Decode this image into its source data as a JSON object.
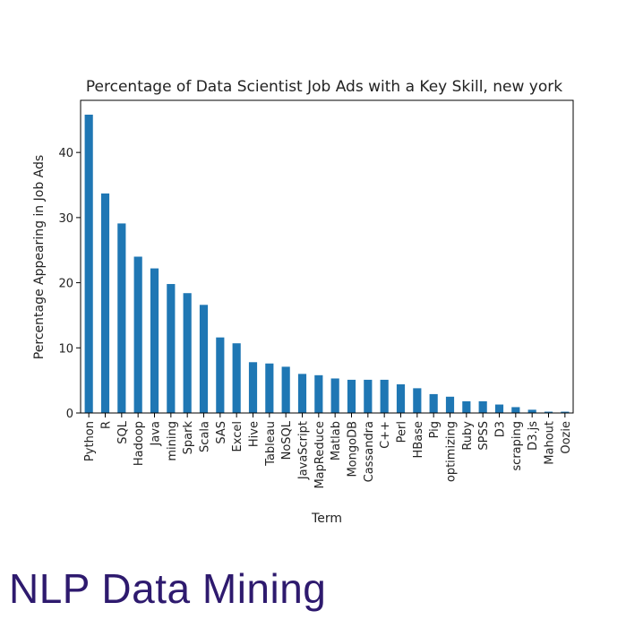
{
  "footer_title": "NLP Data Mining",
  "chart_data": {
    "type": "bar",
    "title": "Percentage of Data Scientist Job Ads with a Key Skill, new york",
    "xlabel": "Term",
    "ylabel": "Percentage Appearing in Job Ads",
    "ylim": [
      0,
      48
    ],
    "yticks": [
      0,
      10,
      20,
      30,
      40
    ],
    "grid": false,
    "bar_color": "#1f77b4",
    "categories": [
      "Python",
      "R",
      "SQL",
      "Hadoop",
      "Java",
      "mining",
      "Spark",
      "Scala",
      "SAS",
      "Excel",
      "Hive",
      "Tableau",
      "NoSQL",
      "JavaScript",
      "MapReduce",
      "Matlab",
      "MongoDB",
      "Cassandra",
      "C++",
      "Perl",
      "HBase",
      "Pig",
      "optimizing",
      "Ruby",
      "SPSS",
      "D3",
      "scraping",
      "D3.js",
      "Mahout",
      "Oozie"
    ],
    "values": [
      45.8,
      33.7,
      29.1,
      24.0,
      22.2,
      19.8,
      18.4,
      16.6,
      11.6,
      10.7,
      7.8,
      7.6,
      7.1,
      6.0,
      5.8,
      5.3,
      5.1,
      5.1,
      5.1,
      4.4,
      3.8,
      2.9,
      2.5,
      1.8,
      1.8,
      1.3,
      0.9,
      0.5,
      0.2,
      0.2
    ]
  }
}
